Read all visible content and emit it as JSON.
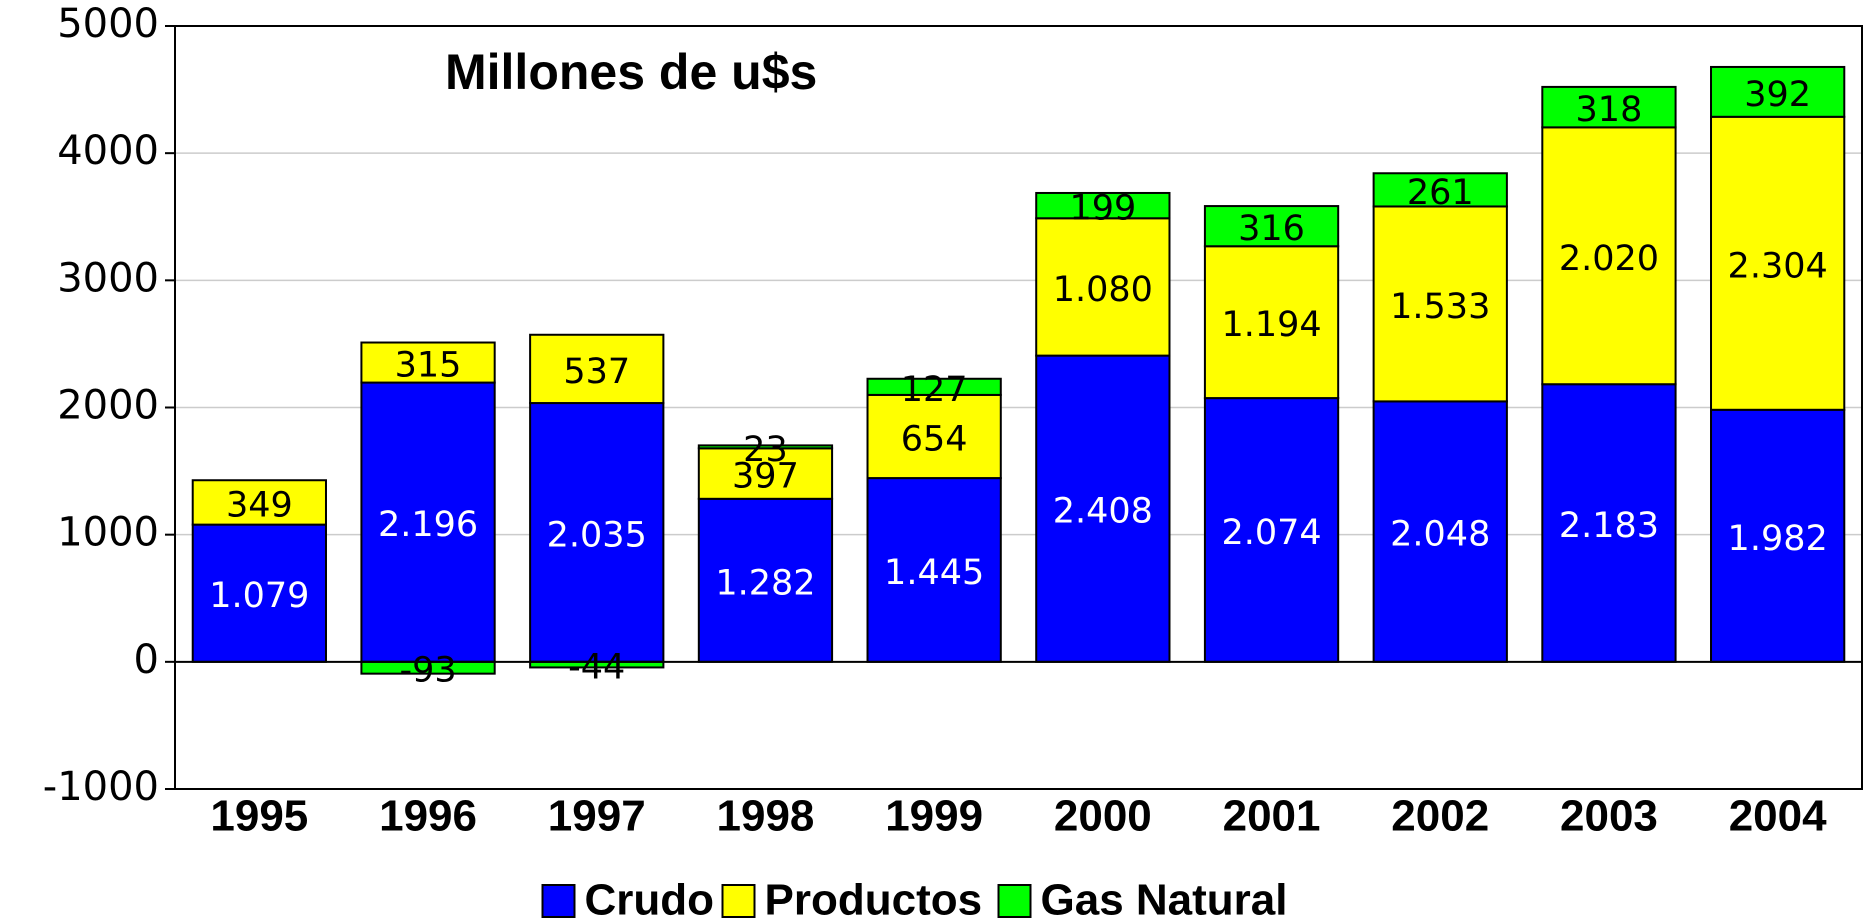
{
  "chart_data": {
    "type": "stacked_bar",
    "title": "Millones de u$s",
    "categories": [
      "1995",
      "1996",
      "1997",
      "1998",
      "1999",
      "2000",
      "2001",
      "2002",
      "2003",
      "2004"
    ],
    "series": [
      {
        "name": "Crudo",
        "color": "#0000ff",
        "values": [
          1079,
          2196,
          2035,
          1282,
          1445,
          2408,
          2074,
          2048,
          2183,
          1982
        ],
        "value_labels": [
          "1.079",
          "2.196",
          "2.035",
          "1.282",
          "1.445",
          "2.408",
          "2.074",
          "2.048",
          "2.183",
          "1.982"
        ]
      },
      {
        "name": "Productos",
        "color": "#ffff00",
        "values": [
          349,
          315,
          537,
          397,
          654,
          1080,
          1194,
          1533,
          2020,
          2304
        ],
        "value_labels": [
          "349",
          "315",
          "537",
          "397",
          "654",
          "1.080",
          "1.194",
          "1.533",
          "2.020",
          "2.304"
        ]
      },
      {
        "name": "Gas Natural",
        "color": "#00ff00",
        "values": [
          null,
          -93,
          -44,
          23,
          127,
          199,
          316,
          261,
          318,
          392
        ]
      }
    ],
    "ylim": [
      -1000,
      5000
    ],
    "yticks": [
      -1000,
      0,
      1000,
      2000,
      3000,
      4000,
      5000
    ],
    "grid": true,
    "legend": "bottom"
  }
}
